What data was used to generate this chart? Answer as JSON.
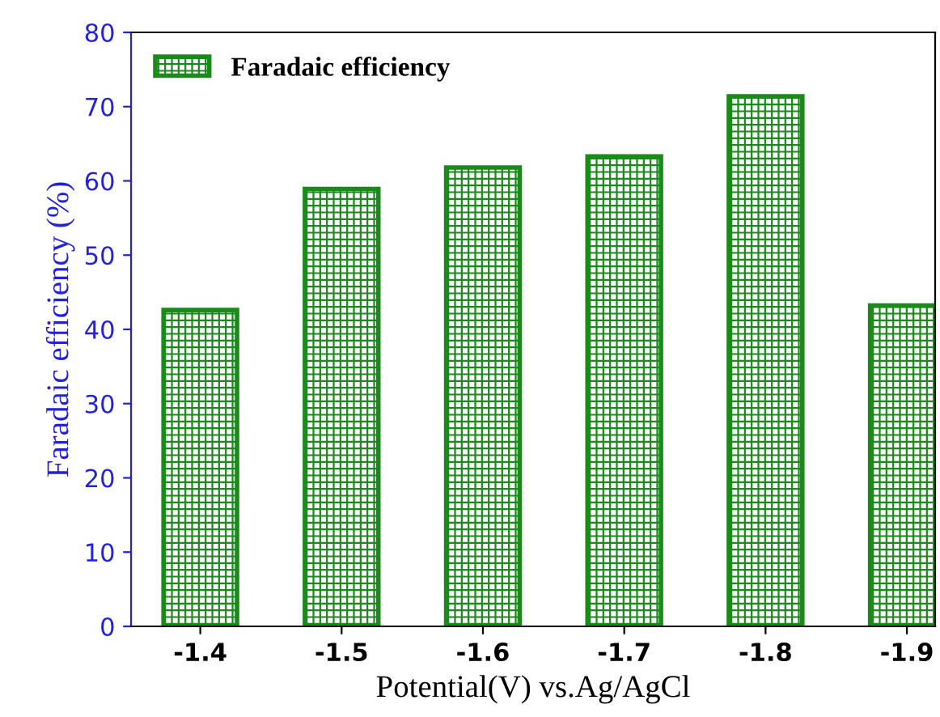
{
  "chart_data": {
    "type": "bar",
    "xlabel": "Potential(V) vs.Ag/AgCl",
    "ylabel": "Faradaic efficiency (%)",
    "categories": [
      "-1.4",
      "-1.5",
      "-1.6",
      "-1.7",
      "-1.8",
      "-1.9"
    ],
    "series": [
      {
        "name": "Faradaic efficiency",
        "color": "#1a8a1a",
        "values": [
          42.6,
          58.9,
          61.8,
          63.3,
          71.4,
          43.2
        ]
      }
    ],
    "ylim": [
      0,
      80
    ],
    "yticks": [
      0,
      10,
      20,
      30,
      40,
      50,
      60,
      70,
      80
    ],
    "grid": false,
    "legend": "top left"
  }
}
